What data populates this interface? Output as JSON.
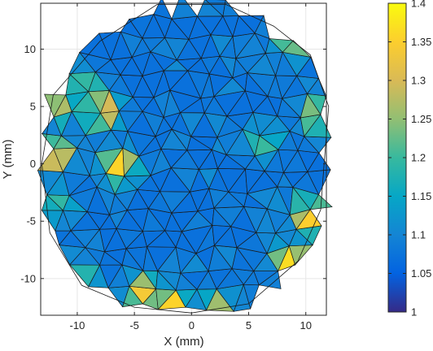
{
  "chart_data": {
    "type": "heatmap",
    "title": "",
    "xlabel": "X (mm)",
    "ylabel": "Y (mm)",
    "xlim": [
      -13.2,
      11.8
    ],
    "ylim": [
      -13.2,
      14.0
    ],
    "x_ticks": [
      -10,
      -5,
      0,
      5,
      10
    ],
    "x_tick_labels": [
      "-10",
      "-5",
      "0",
      "5",
      "10"
    ],
    "y_ticks": [
      -10,
      -5,
      0,
      5,
      10
    ],
    "y_tick_labels": [
      "-10",
      "-5",
      "0",
      "5",
      "10"
    ],
    "grid": true,
    "colormap": "parula",
    "colorbar": {
      "range": [
        1,
        1.4
      ],
      "ticks": [
        1,
        1.05,
        1.1,
        1.15,
        1.2,
        1.25,
        1.3,
        1.35,
        1.4
      ],
      "tick_labels": [
        "1",
        "1.05",
        "1.1",
        "1.15",
        "1.2",
        "1.25",
        "1.3",
        "1.35",
        "1.4"
      ],
      "placement": "right"
    },
    "mesh": {
      "boundary": [
        [
          -3.0,
          13.9
        ],
        [
          3.0,
          13.9
        ],
        [
          7.2,
          12.0
        ],
        [
          10.4,
          9.5
        ],
        [
          12.0,
          5.0
        ],
        [
          11.6,
          0.0
        ],
        [
          11.3,
          -4.0
        ],
        [
          9.3,
          -8.5
        ],
        [
          5.0,
          -12.2
        ],
        [
          0.0,
          -13.0
        ],
        [
          -5.0,
          -12.5
        ],
        [
          -9.6,
          -10.6
        ],
        [
          -12.4,
          -6.0
        ],
        [
          -13.1,
          0.0
        ],
        [
          -12.1,
          6.0
        ],
        [
          -8.0,
          10.7
        ]
      ],
      "description_of_values": "per-element value, mostly 1.02-1.15 interior, 1.2-1.4 near edges",
      "hotspots": [
        {
          "x": -12.0,
          "y": 0.8,
          "value": 1.37
        },
        {
          "x": -7.8,
          "y": 4.6,
          "value": 1.38
        },
        {
          "x": -11.5,
          "y": 5.0,
          "value": 1.28
        },
        {
          "x": -6.3,
          "y": -0.2,
          "value": 1.36
        },
        {
          "x": -10.0,
          "y": -10.8,
          "value": 1.4
        },
        {
          "x": -4.2,
          "y": -11.2,
          "value": 1.34
        },
        {
          "x": -1.8,
          "y": -12.6,
          "value": 1.4
        },
        {
          "x": 2.2,
          "y": -12.8,
          "value": 1.3
        },
        {
          "x": 8.7,
          "y": -8.5,
          "value": 1.38
        },
        {
          "x": 10.4,
          "y": -4.5,
          "value": 1.39
        },
        {
          "x": 11.0,
          "y": 4.3,
          "value": 1.3
        },
        {
          "x": 8.8,
          "y": 10.6,
          "value": 1.27
        },
        {
          "x": -11.3,
          "y": 8.0,
          "value": 1.23
        },
        {
          "x": -9.2,
          "y": 6.5,
          "value": 1.25
        },
        {
          "x": -11.5,
          "y": -3.5,
          "value": 1.2
        },
        {
          "x": 6.2,
          "y": 2.0,
          "value": 1.22
        }
      ],
      "base_value": 1.07
    }
  }
}
